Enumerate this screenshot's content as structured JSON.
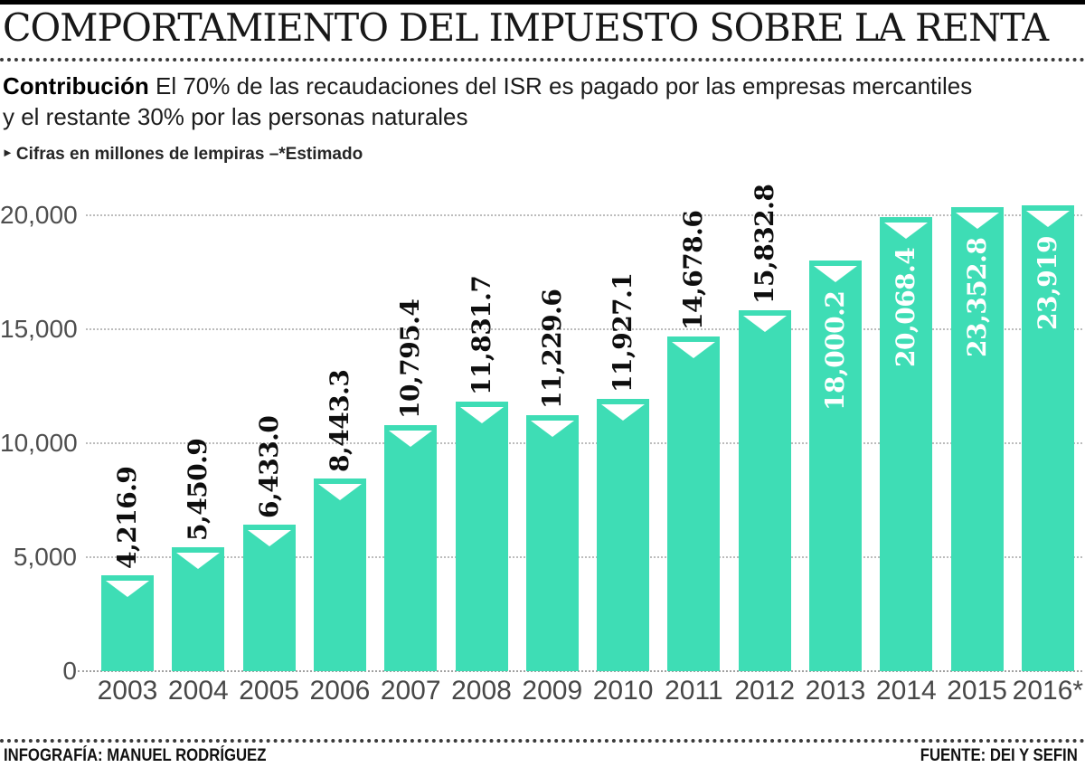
{
  "header": {
    "title": "COMPORTAMIENTO DEL IMPUESTO SOBRE LA RENTA",
    "subtitle_lead": "Contribución",
    "subtitle_rest_line1": "El 70% de las recaudaciones del ISR es pagado por las empresas mercantiles",
    "subtitle_rest_line2": "y el restante 30% por las personas naturales",
    "note_bullet": "►",
    "note": "Cifras en millones de lempiras –*Estimado"
  },
  "chart_data": {
    "type": "bar",
    "title": "Comportamiento del impuesto sobre la renta",
    "unit": "millones de lempiras",
    "categories": [
      "2003",
      "2004",
      "2005",
      "2006",
      "2007",
      "2008",
      "2009",
      "2010",
      "2011",
      "2012",
      "2013",
      "2014",
      "2015",
      "2016*"
    ],
    "values": [
      4216.9,
      5450.9,
      6433.0,
      8443.3,
      10795.4,
      11831.7,
      11229.6,
      11927.1,
      14678.6,
      15832.8,
      18000.2,
      20068.4,
      23352.8,
      23919
    ],
    "value_labels": [
      "4,216.9",
      "5,450.9",
      "6,433.0",
      "8,443.3",
      "10,795.4",
      "11,831.7",
      "11,229.6",
      "11,927.1",
      "14,678.6",
      "15,832.8",
      "18,000.2",
      "20,068.4",
      "23,352.8",
      "23,919"
    ],
    "xlabel": "",
    "ylabel": "",
    "ylim": [
      0,
      20000
    ],
    "yticks": [
      0,
      5000,
      10000,
      15000,
      20000
    ],
    "ytick_labels": [
      "0",
      "5,000",
      "10,000",
      "15,000",
      "20,000"
    ],
    "grid": "horizontal dotted",
    "legend": "none",
    "bar_color": "#3eddb5",
    "bar_marker": "white down-triangle notch at top of each bar",
    "clipped_note": "bars for 2015 and 2016 are visually clipped just above the 20,000 gridline",
    "estimated_year": "2016*"
  },
  "colors": {
    "bar": "#3eddb5",
    "gridline": "#bcbcbc",
    "axis_text": "#4a4a4a",
    "label_dark": "#0e0e0e",
    "label_light": "#ffffff",
    "top_rule": "#000000"
  },
  "footer": {
    "credit": "INFOGRAFÍA: MANUEL RODRÍGUEZ",
    "source": "FUENTE: DEI Y SEFIN"
  }
}
